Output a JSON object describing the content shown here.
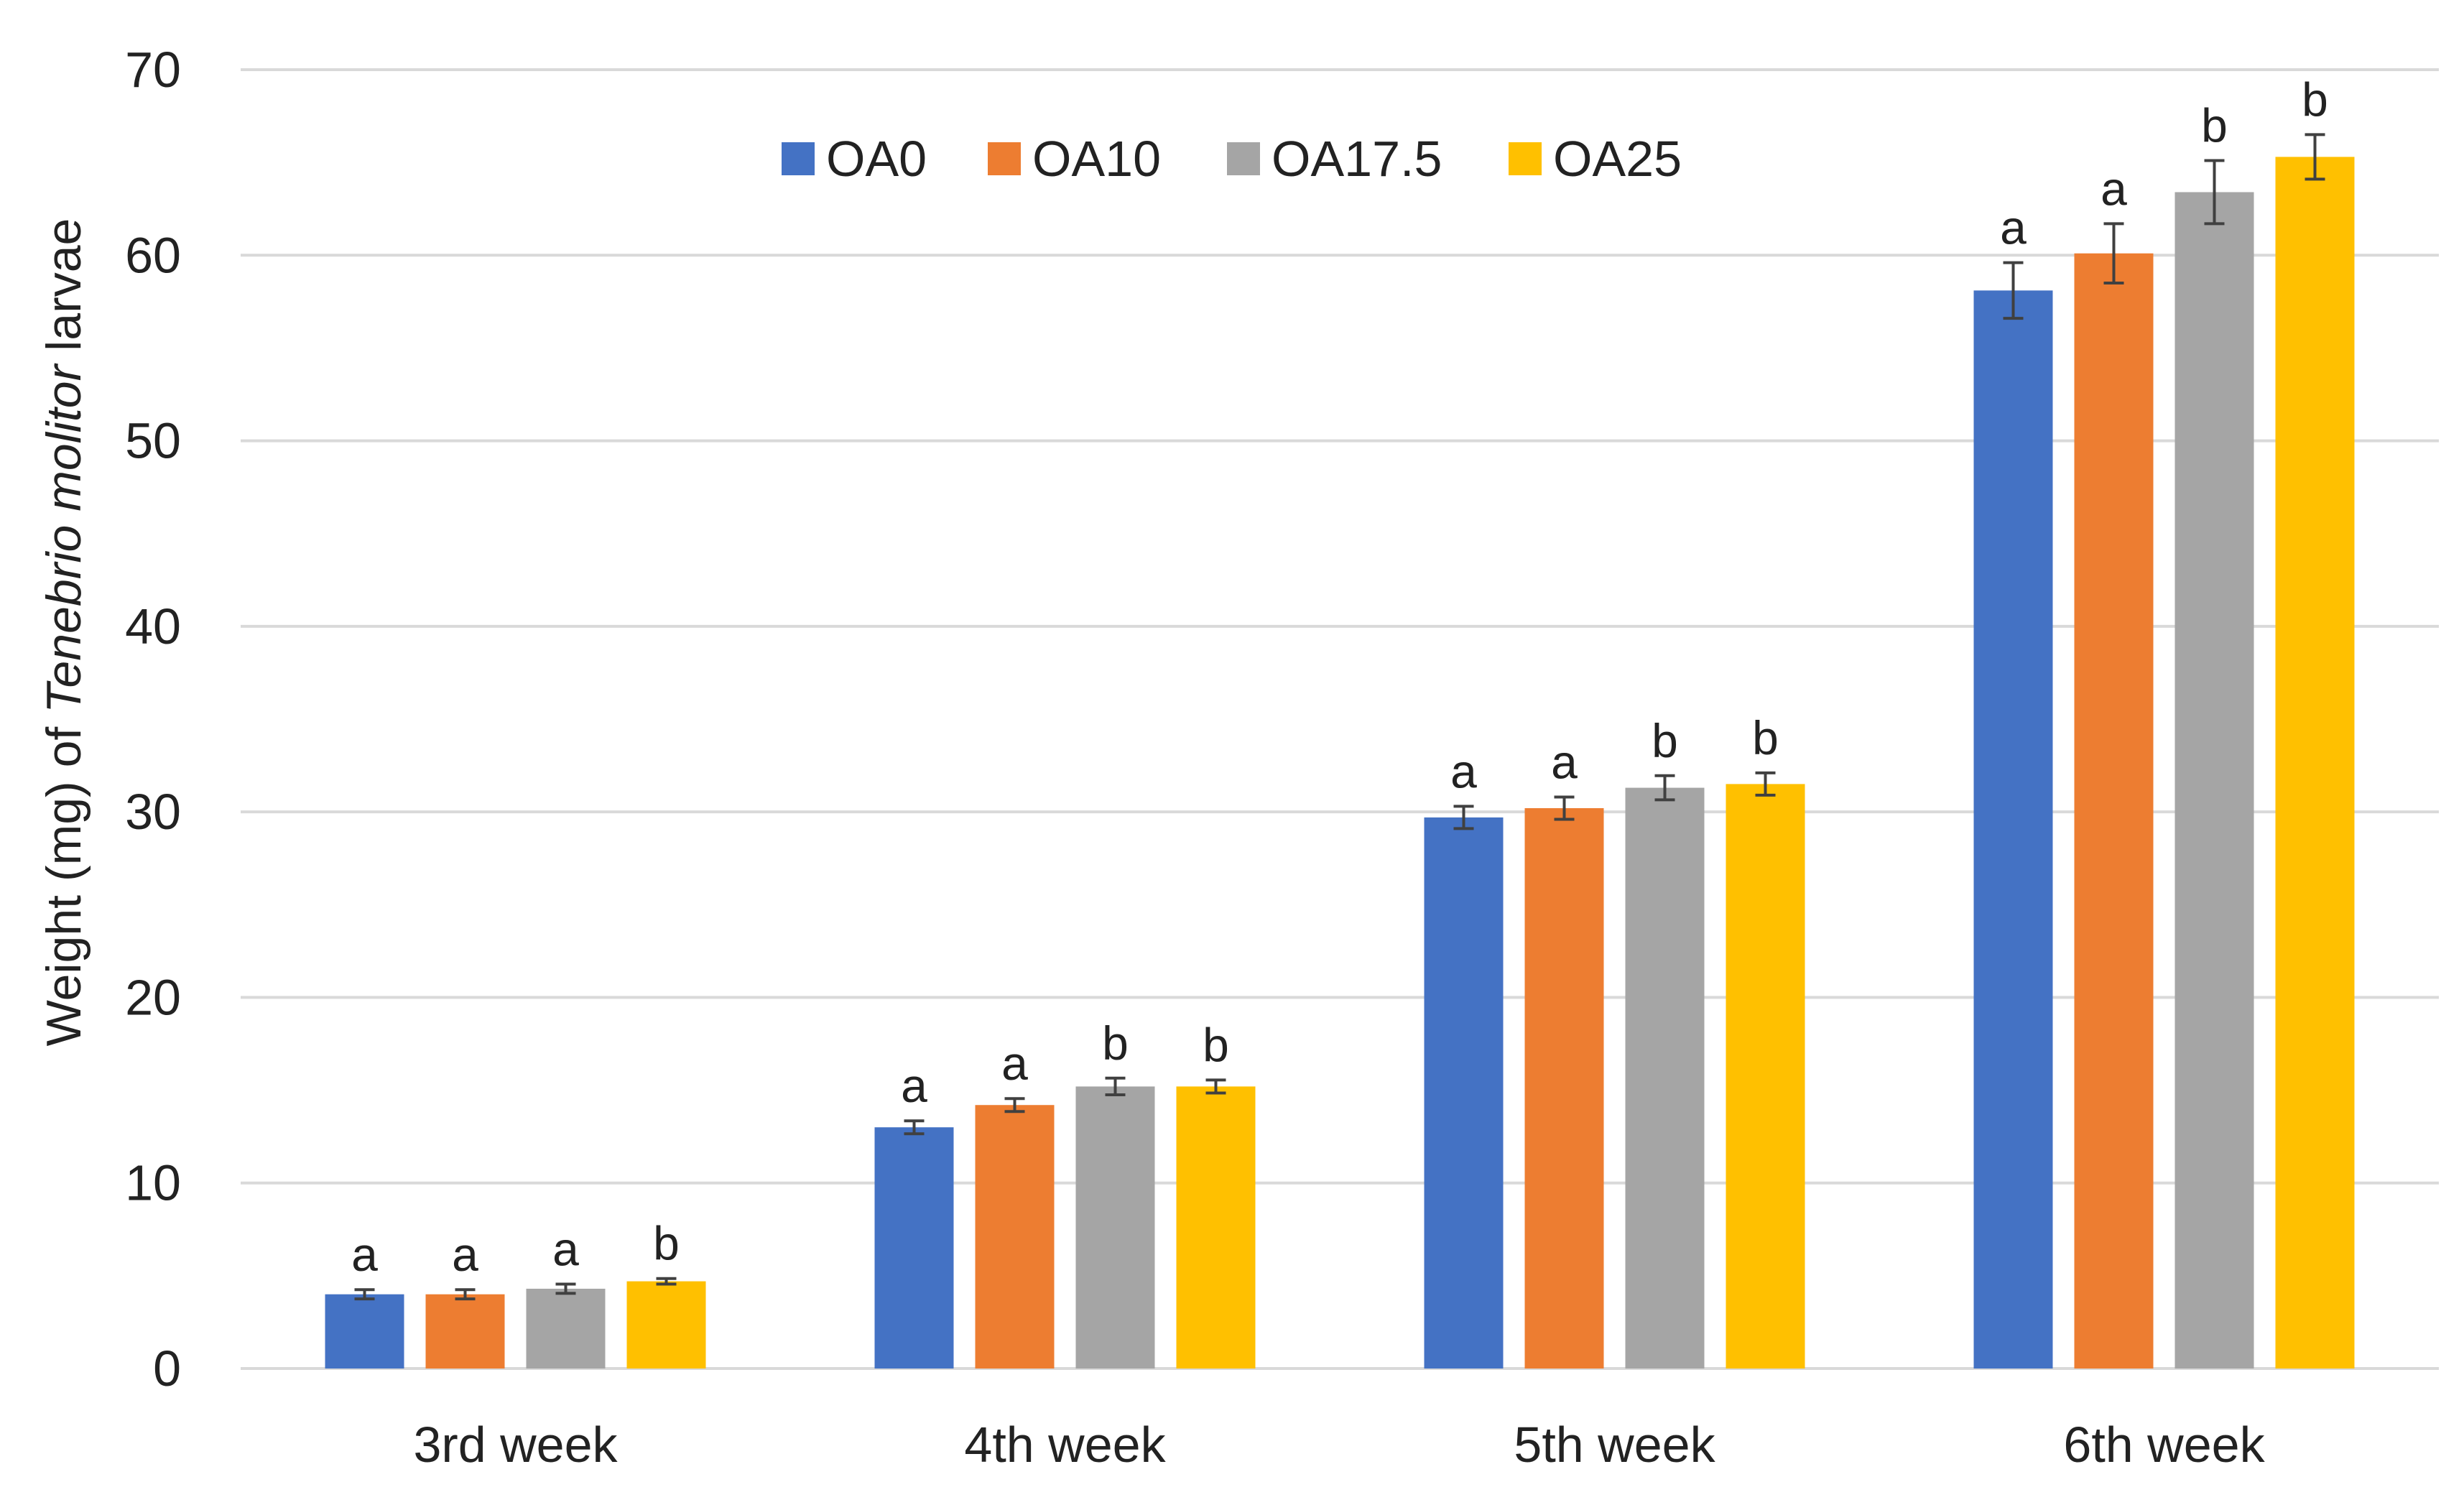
{
  "chart_data": {
    "type": "bar",
    "title": "",
    "xlabel": "",
    "ylabel": {
      "prefix": "Weight (mg) of ",
      "italic": "Tenebrio molitor",
      "suffix": " larvae"
    },
    "ylim": [
      0,
      70
    ],
    "yticks": [
      0,
      10,
      20,
      30,
      40,
      50,
      60,
      70
    ],
    "grid": true,
    "legend_position": "top-center",
    "categories": [
      "3rd week",
      "4th week",
      "5th week",
      "6th week"
    ],
    "series": [
      {
        "name": "OA0",
        "color": "#4472C4",
        "values": [
          4.0,
          13.0,
          29.7,
          58.1
        ],
        "errors": [
          0.25,
          0.35,
          0.6,
          1.5
        ],
        "letters": [
          "a",
          "a",
          "a",
          "a"
        ]
      },
      {
        "name": "OA10",
        "color": "#ED7D31",
        "values": [
          4.0,
          14.2,
          30.2,
          60.1
        ],
        "errors": [
          0.25,
          0.35,
          0.6,
          1.6
        ],
        "letters": [
          "a",
          "a",
          "a",
          "a"
        ]
      },
      {
        "name": "OA17.5",
        "color": "#A5A5A5",
        "values": [
          4.3,
          15.2,
          31.3,
          63.4
        ],
        "errors": [
          0.25,
          0.45,
          0.65,
          1.7
        ],
        "letters": [
          "a",
          "b",
          "b",
          "b"
        ]
      },
      {
        "name": "OA25",
        "color": "#FFC000",
        "values": [
          4.7,
          15.2,
          31.5,
          65.3
        ],
        "errors": [
          0.15,
          0.35,
          0.6,
          1.2
        ],
        "letters": [
          "b",
          "b",
          "b",
          "b"
        ]
      }
    ]
  }
}
